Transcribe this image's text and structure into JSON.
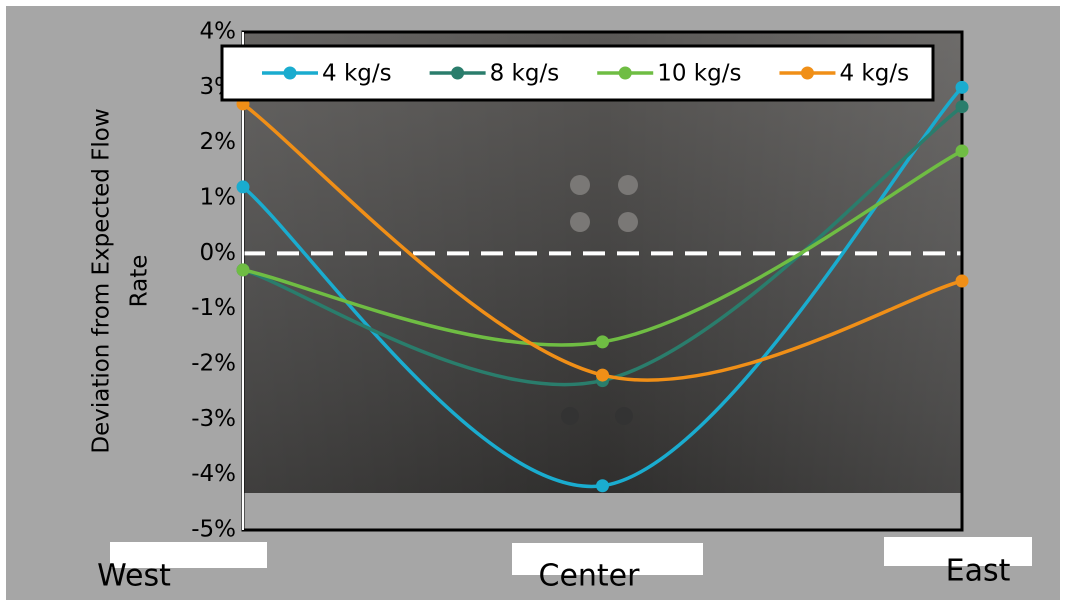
{
  "chart_data": {
    "type": "line",
    "y_label": [
      "Deviation from Expected Flow",
      "Rate"
    ],
    "categories": [
      "West",
      "Center",
      "East"
    ],
    "series": [
      {
        "name": "4 kg/s",
        "color": "#1aaccf",
        "values": [
          1.2,
          -4.2,
          3.0
        ]
      },
      {
        "name": "8 kg/s",
        "color": "#2a7d6c",
        "values": [
          -0.3,
          -2.3,
          2.65
        ]
      },
      {
        "name": "10 kg/s",
        "color": "#6fbd43",
        "values": [
          -0.3,
          -1.6,
          1.85
        ]
      },
      {
        "name": "4 kg/s",
        "color": "#f08f17",
        "values": [
          2.7,
          -2.2,
          -0.5
        ]
      }
    ],
    "ylim": [
      -5,
      4
    ],
    "yticks": [
      {
        "value": -5,
        "label": "-5%"
      },
      {
        "value": -4,
        "label": "-4%"
      },
      {
        "value": -3,
        "label": "-3%"
      },
      {
        "value": -2,
        "label": "-2%"
      },
      {
        "value": -1,
        "label": "-1%"
      },
      {
        "value": 0,
        "label": "0%"
      },
      {
        "value": 1,
        "label": "1%"
      },
      {
        "value": 2,
        "label": "2%"
      },
      {
        "value": 3,
        "label": "3%"
      },
      {
        "value": 4,
        "label": "4%"
      }
    ],
    "reference_value": 0,
    "smooth": true,
    "legend_position": "top"
  }
}
